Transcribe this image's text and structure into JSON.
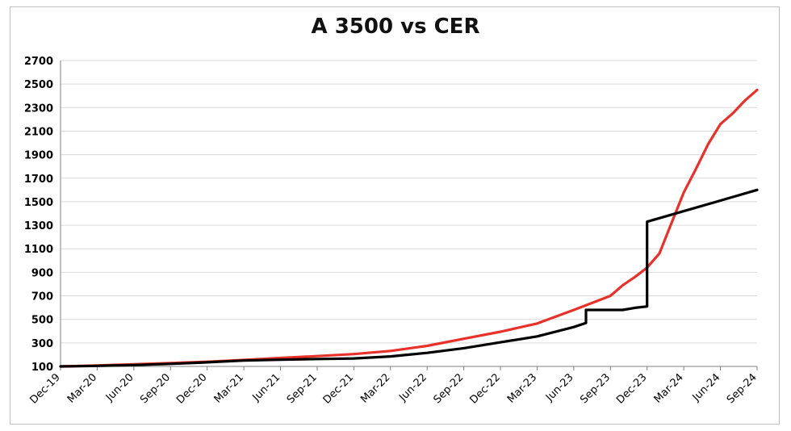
{
  "chart_data": {
    "type": "line",
    "title": "A 3500 vs CER",
    "xlabel": "",
    "ylabel": "",
    "ylim": [
      100,
      2700
    ],
    "yticks": [
      100,
      300,
      500,
      700,
      900,
      1100,
      1300,
      1500,
      1700,
      1900,
      2100,
      2300,
      2500,
      2700
    ],
    "xticks": [
      "Dec-19",
      "Mar-20",
      "Jun-20",
      "Sep-20",
      "Dec-20",
      "Mar-21",
      "Jun-21",
      "Sep-21",
      "Dec-21",
      "Mar-22",
      "Jun-22",
      "Sep-22",
      "Dec-22",
      "Mar-23",
      "Jun-23",
      "Sep-23",
      "Dec-23",
      "Mar-24",
      "Jun-24",
      "Sep-24"
    ],
    "grid": true,
    "legend": "none",
    "series": [
      {
        "color": "#e8312a",
        "points": [
          [
            "Dec-19",
            100
          ],
          [
            "Mar-20",
            108
          ],
          [
            "Jun-20",
            118
          ],
          [
            "Sep-20",
            128
          ],
          [
            "Dec-20",
            140
          ],
          [
            "Mar-21",
            155
          ],
          [
            "Jun-21",
            172
          ],
          [
            "Sep-21",
            188
          ],
          [
            "Dec-21",
            205
          ],
          [
            "Mar-22",
            232
          ],
          [
            "Jun-22",
            275
          ],
          [
            "Sep-22",
            335
          ],
          [
            "Dec-22",
            395
          ],
          [
            "Mar-23",
            465
          ],
          [
            "Jun-23",
            580
          ],
          [
            "Aug-23",
            660
          ],
          [
            "Sep-23",
            700
          ],
          [
            "Oct-23",
            790
          ],
          [
            "Nov-23",
            860
          ],
          [
            "Dec-23",
            940
          ],
          [
            "Jan-24",
            1060
          ],
          [
            "Feb-24",
            1320
          ],
          [
            "Mar-24",
            1580
          ],
          [
            "Apr-24",
            1780
          ],
          [
            "May-24",
            1990
          ],
          [
            "Jun-24",
            2160
          ],
          [
            "Jul-24",
            2250
          ],
          [
            "Aug-24",
            2360
          ],
          [
            "Sep-24",
            2450
          ]
        ]
      },
      {
        "color": "#000000",
        "points": [
          [
            "Dec-19",
            100
          ],
          [
            "Mar-20",
            105
          ],
          [
            "Jun-20",
            112
          ],
          [
            "Sep-20",
            122
          ],
          [
            "Dec-20",
            135
          ],
          [
            "Mar-21",
            150
          ],
          [
            "Jun-21",
            157
          ],
          [
            "Sep-21",
            163
          ],
          [
            "Dec-21",
            168
          ],
          [
            "Mar-22",
            185
          ],
          [
            "Jun-22",
            215
          ],
          [
            "Sep-22",
            255
          ],
          [
            "Dec-22",
            305
          ],
          [
            "Mar-23",
            355
          ],
          [
            "Jun-23",
            435
          ],
          [
            "Jul-23",
            470
          ],
          [
            "Jul-23",
            580
          ],
          [
            "Sep-23",
            580
          ],
          [
            "Oct-23",
            580
          ],
          [
            "Nov-23",
            598
          ],
          [
            "Dec-23",
            610
          ],
          [
            "Dec-23",
            1330
          ],
          [
            "Mar-24",
            1420
          ],
          [
            "Jun-24",
            1510
          ],
          [
            "Sep-24",
            1600
          ]
        ]
      }
    ]
  }
}
